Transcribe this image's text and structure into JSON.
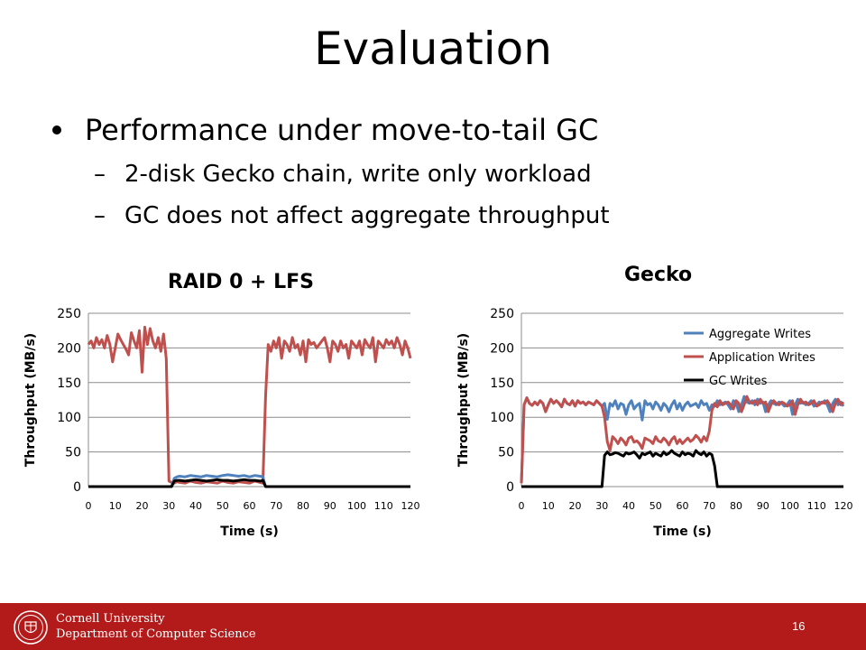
{
  "slide": {
    "title": "Evaluation",
    "bullet1": "Performance under move-to-tail GC",
    "sub1": "2-disk Gecko chain, write only workload",
    "sub2": "GC does not affect aggregate throughput",
    "dash": "–",
    "page_number": "16"
  },
  "footer": {
    "line1": "Cornell University",
    "line2": "Department of Computer Science",
    "colors": {
      "band": "#b31b1b"
    }
  },
  "colors": {
    "aggregate": "#4f81bd",
    "application": "#c0504d",
    "gc": "#000000"
  },
  "chart_data": [
    {
      "type": "line",
      "title": "RAID 0 + LFS",
      "xlabel": "Time (s)",
      "ylabel": "Throughput (MB/s)",
      "xlim": [
        0,
        120
      ],
      "ylim": [
        0,
        250
      ],
      "xticks": [
        0,
        10,
        20,
        30,
        40,
        50,
        60,
        70,
        80,
        90,
        100,
        110,
        120
      ],
      "yticks": [
        0,
        50,
        100,
        150,
        200,
        250
      ],
      "grid": true,
      "legend": "none",
      "series": [
        {
          "color": "#c0504d",
          "x": [
            0,
            1,
            2,
            3,
            4,
            5,
            6,
            7,
            8,
            9,
            10,
            11,
            12,
            13,
            14,
            15,
            16,
            17,
            18,
            19,
            20,
            21,
            22,
            23,
            24,
            25,
            26,
            27,
            28,
            29,
            30,
            31,
            32,
            33,
            34,
            36,
            38,
            40,
            42,
            44,
            46,
            48,
            50,
            52,
            54,
            56,
            58,
            60,
            62,
            64,
            65,
            66,
            67,
            68,
            69,
            70,
            71,
            72,
            73,
            74,
            75,
            76,
            77,
            78,
            79,
            80,
            81,
            82,
            83,
            84,
            85,
            86,
            87,
            88,
            89,
            90,
            91,
            92,
            93,
            94,
            95,
            96,
            97,
            98,
            99,
            100,
            101,
            102,
            103,
            104,
            105,
            106,
            107,
            108,
            109,
            110,
            111,
            112,
            113,
            114,
            115,
            116,
            117,
            118,
            119,
            120
          ],
          "y": [
            205,
            210,
            200,
            215,
            205,
            212,
            200,
            218,
            205,
            180,
            200,
            220,
            212,
            205,
            198,
            190,
            222,
            210,
            200,
            225,
            165,
            230,
            205,
            228,
            210,
            200,
            215,
            195,
            220,
            185,
            8,
            6,
            5,
            7,
            6,
            5,
            8,
            6,
            5,
            7,
            6,
            5,
            8,
            6,
            5,
            7,
            6,
            5,
            8,
            6,
            5,
            130,
            205,
            195,
            210,
            200,
            215,
            185,
            210,
            205,
            195,
            215,
            200,
            205,
            190,
            210,
            180,
            212,
            205,
            208,
            200,
            205,
            210,
            215,
            200,
            180,
            210,
            205,
            195,
            210,
            200,
            205,
            185,
            210,
            205,
            200,
            210,
            190,
            212,
            205,
            200,
            215,
            180,
            210,
            205,
            200,
            212,
            205,
            210,
            200,
            215,
            205,
            190,
            210,
            200,
            185
          ]
        },
        {
          "color": "#4f81bd",
          "x": [
            0,
            31,
            32,
            33,
            34,
            36,
            38,
            40,
            42,
            44,
            46,
            48,
            50,
            52,
            54,
            56,
            58,
            60,
            62,
            64,
            65,
            66
          ],
          "y": [
            0,
            0,
            12,
            14,
            15,
            14,
            16,
            15,
            14,
            16,
            15,
            14,
            16,
            17,
            16,
            15,
            16,
            14,
            16,
            15,
            14,
            0
          ]
        },
        {
          "color": "#000000",
          "x": [
            0,
            31,
            32,
            33,
            34,
            36,
            38,
            40,
            42,
            44,
            46,
            48,
            50,
            52,
            54,
            56,
            58,
            60,
            62,
            64,
            65,
            66,
            120
          ],
          "y": [
            0,
            0,
            8,
            9,
            9,
            8,
            9,
            10,
            9,
            8,
            9,
            10,
            9,
            9,
            8,
            9,
            10,
            9,
            9,
            8,
            9,
            0,
            0
          ]
        }
      ]
    },
    {
      "type": "line",
      "title": "Gecko",
      "xlabel": "Time (s)",
      "ylabel": "Throughput (MB/s)",
      "xlim": [
        0,
        120
      ],
      "ylim": [
        0,
        250
      ],
      "xticks": [
        0,
        10,
        20,
        30,
        40,
        50,
        60,
        70,
        80,
        90,
        100,
        110,
        120
      ],
      "yticks": [
        0,
        50,
        100,
        150,
        200,
        250
      ],
      "grid": true,
      "legend": "top-right",
      "series": [
        {
          "name": "Aggregate Writes",
          "color": "#4f81bd",
          "x": [
            0,
            1,
            2,
            3,
            4,
            5,
            6,
            7,
            8,
            9,
            10,
            11,
            12,
            13,
            14,
            15,
            16,
            17,
            18,
            19,
            20,
            21,
            22,
            23,
            24,
            25,
            26,
            27,
            28,
            29,
            30,
            31,
            32,
            33,
            34,
            35,
            36,
            37,
            38,
            39,
            40,
            41,
            42,
            43,
            44,
            45,
            46,
            47,
            48,
            49,
            50,
            51,
            52,
            53,
            54,
            55,
            56,
            57,
            58,
            59,
            60,
            61,
            62,
            63,
            64,
            65,
            66,
            67,
            68,
            69,
            70,
            71,
            72,
            73,
            74,
            75,
            76,
            77,
            78,
            79,
            80,
            81,
            82,
            83,
            84,
            85,
            86,
            87,
            88,
            89,
            90,
            91,
            92,
            93,
            94,
            95,
            96,
            97,
            98,
            99,
            100,
            101,
            102,
            103,
            104,
            105,
            106,
            107,
            108,
            109,
            110,
            111,
            112,
            113,
            114,
            115,
            116,
            117,
            118,
            119,
            120
          ],
          "y": [
            5,
            118,
            128,
            120,
            117,
            122,
            118,
            124,
            120,
            108,
            118,
            126,
            120,
            124,
            120,
            115,
            126,
            120,
            118,
            124,
            116,
            124,
            120,
            122,
            118,
            122,
            120,
            118,
            124,
            120,
            116,
            120,
            97,
            120,
            116,
            124,
            112,
            120,
            118,
            104,
            118,
            124,
            112,
            117,
            120,
            96,
            124,
            118,
            120,
            112,
            122,
            118,
            110,
            120,
            116,
            108,
            118,
            124,
            112,
            120,
            110,
            118,
            122,
            116,
            118,
            120,
            114,
            124,
            118,
            120,
            110,
            118,
            116,
            124,
            118,
            120,
            122,
            118,
            112,
            124,
            120,
            108,
            118,
            130,
            122,
            120,
            124,
            118,
            126,
            120,
            122,
            108,
            118,
            124,
            120,
            118,
            122,
            120,
            116,
            118,
            124,
            104,
            118,
            126,
            120,
            122,
            118,
            120,
            124,
            116,
            118,
            122,
            120,
            124,
            118,
            108,
            120,
            126,
            118,
            122,
            116
          ]
        },
        {
          "name": "Application Writes",
          "color": "#c0504d",
          "x": [
            0,
            1,
            2,
            3,
            4,
            5,
            6,
            7,
            8,
            9,
            10,
            11,
            12,
            13,
            14,
            15,
            16,
            17,
            18,
            19,
            20,
            21,
            22,
            23,
            24,
            25,
            26,
            27,
            28,
            29,
            30,
            31,
            32,
            33,
            34,
            35,
            36,
            37,
            38,
            39,
            40,
            41,
            42,
            43,
            44,
            45,
            46,
            47,
            48,
            49,
            50,
            51,
            52,
            53,
            54,
            55,
            56,
            57,
            58,
            59,
            60,
            61,
            62,
            63,
            64,
            65,
            66,
            67,
            68,
            69,
            70,
            71,
            72,
            73,
            74,
            75,
            76,
            77,
            78,
            79,
            80,
            81,
            82,
            83,
            84,
            85,
            86,
            87,
            88,
            89,
            90,
            91,
            92,
            93,
            94,
            95,
            96,
            97,
            98,
            99,
            100,
            101,
            102,
            103,
            104,
            105,
            106,
            107,
            108,
            109,
            110,
            111,
            112,
            113,
            114,
            115,
            116,
            117,
            118,
            119,
            120
          ],
          "y": [
            5,
            118,
            128,
            120,
            117,
            122,
            118,
            124,
            120,
            108,
            118,
            126,
            120,
            124,
            120,
            115,
            126,
            120,
            118,
            124,
            116,
            124,
            120,
            122,
            118,
            122,
            120,
            118,
            124,
            120,
            116,
            100,
            65,
            52,
            72,
            68,
            62,
            70,
            66,
            60,
            70,
            72,
            64,
            66,
            62,
            55,
            70,
            68,
            66,
            62,
            72,
            66,
            64,
            70,
            66,
            60,
            68,
            72,
            62,
            68,
            62,
            66,
            70,
            65,
            68,
            74,
            70,
            64,
            72,
            66,
            80,
            110,
            120,
            115,
            124,
            118,
            120,
            122,
            118,
            112,
            124,
            120,
            108,
            118,
            130,
            122,
            120,
            124,
            118,
            126,
            120,
            122,
            108,
            118,
            124,
            120,
            118,
            122,
            120,
            116,
            118,
            124,
            104,
            118,
            126,
            120,
            122,
            118,
            120,
            124,
            116,
            118,
            122,
            120,
            124,
            118,
            108,
            120,
            126,
            118,
            122
          ]
        },
        {
          "name": "GC Writes",
          "color": "#000000",
          "x": [
            0,
            30,
            31,
            32,
            33,
            34,
            35,
            36,
            37,
            38,
            39,
            40,
            41,
            42,
            43,
            44,
            45,
            46,
            47,
            48,
            49,
            50,
            51,
            52,
            53,
            54,
            55,
            56,
            57,
            58,
            59,
            60,
            61,
            62,
            63,
            64,
            65,
            66,
            67,
            68,
            69,
            70,
            71,
            72,
            73,
            120
          ],
          "y": [
            0,
            0,
            45,
            50,
            46,
            47,
            49,
            48,
            46,
            44,
            49,
            47,
            48,
            50,
            46,
            41,
            48,
            46,
            48,
            50,
            44,
            48,
            46,
            44,
            50,
            46,
            48,
            52,
            48,
            46,
            44,
            50,
            46,
            48,
            47,
            44,
            52,
            48,
            46,
            50,
            44,
            48,
            46,
            30,
            0,
            0
          ]
        }
      ]
    }
  ]
}
